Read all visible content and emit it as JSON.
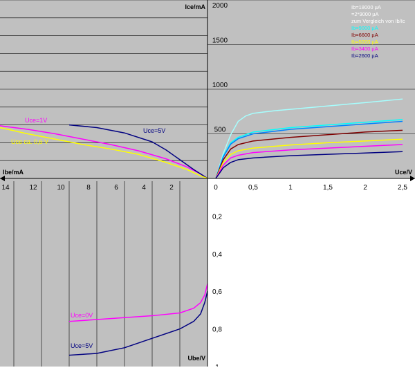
{
  "colors": {
    "background_gray": "#c0c0c0",
    "white": "#ffffff",
    "cyan": "#00ffff",
    "light_cyan": "#a6ffff",
    "dark_red": "#800000",
    "yellow": "#ffff00",
    "magenta": "#ff00ff",
    "navy": "#000080",
    "blue": "#0080ff",
    "black": "#000000"
  },
  "chart_data": [
    {
      "id": "output",
      "type": "line",
      "quadrant": "top-right",
      "xlabel": "Uce/V",
      "ylabel": "Ice/mA",
      "x_ticks": [
        "0",
        "0,5",
        "1",
        "1,5",
        "2",
        "2,5"
      ],
      "y_ticks": [
        "500",
        "1000",
        "1500",
        "2000"
      ],
      "xlim": [
        0,
        2.5
      ],
      "ylim": [
        0,
        2000
      ],
      "grid": "horizontal",
      "legend_position": "top-right",
      "legend": [
        {
          "text": "Ib=18000 µA",
          "color": "#ffffff"
        },
        {
          "text": "=2*9000 µA",
          "color": "#ffffff"
        },
        {
          "text": "zum Vergleich von Ib/Ic",
          "color": "#ffffff"
        },
        {
          "text": "Ib=9000 µA",
          "color": "#00ffff"
        },
        {
          "text": "Ib=6600 µA",
          "color": "#800000"
        },
        {
          "text": "Ib=5000 µA",
          "color": "#ffff00"
        },
        {
          "text": "Ib=3400 µA",
          "color": "#ff00ff"
        },
        {
          "text": "Ib=2600 µA",
          "color": "#000080"
        }
      ],
      "series": [
        {
          "name": "Ib=18000 µA",
          "color": "#a6ffff",
          "x": [
            0,
            0.1,
            0.2,
            0.3,
            0.4,
            0.5,
            0.8,
            1.2,
            1.6,
            2.0,
            2.5
          ],
          "y": [
            0,
            280,
            490,
            640,
            700,
            730,
            760,
            790,
            820,
            850,
            890
          ]
        },
        {
          "name": "Ib=9000 µA",
          "color": "#00ffff",
          "x": [
            0,
            0.1,
            0.2,
            0.3,
            0.5,
            1.0,
            1.5,
            2.0,
            2.5
          ],
          "y": [
            0,
            250,
            400,
            460,
            520,
            570,
            600,
            630,
            660
          ]
        },
        {
          "name": "Ib=9000 µA (2)",
          "color": "#0080ff",
          "x": [
            0,
            0.1,
            0.2,
            0.3,
            0.5,
            1.0,
            1.5,
            2.0,
            2.5
          ],
          "y": [
            0,
            240,
            385,
            445,
            500,
            550,
            580,
            610,
            640
          ]
        },
        {
          "name": "Ib=6600 µA",
          "color": "#800000",
          "x": [
            0,
            0.1,
            0.2,
            0.3,
            0.5,
            1.0,
            1.5,
            2.0,
            2.5
          ],
          "y": [
            0,
            210,
            330,
            380,
            420,
            460,
            490,
            520,
            540
          ]
        },
        {
          "name": "Ib=5000 µA",
          "color": "#ffff00",
          "x": [
            0,
            0.1,
            0.2,
            0.3,
            0.5,
            1.0,
            1.5,
            2.0,
            2.5
          ],
          "y": [
            0,
            180,
            270,
            310,
            340,
            375,
            400,
            420,
            440
          ]
        },
        {
          "name": "Ib=3400 µA",
          "color": "#ff00ff",
          "x": [
            0,
            0.1,
            0.2,
            0.3,
            0.5,
            1.0,
            1.5,
            2.0,
            2.5
          ],
          "y": [
            0,
            150,
            230,
            260,
            290,
            320,
            340,
            360,
            380
          ]
        },
        {
          "name": "Ib=2600 µA",
          "color": "#000080",
          "x": [
            0,
            0.1,
            0.2,
            0.3,
            0.5,
            1.0,
            1.5,
            2.0,
            2.5
          ],
          "y": [
            0,
            120,
            180,
            210,
            230,
            255,
            270,
            285,
            300
          ]
        }
      ]
    },
    {
      "id": "current-gain",
      "type": "line",
      "quadrant": "top-left",
      "xlabel": "Ibe/mA",
      "x_ticks": [
        "14",
        "12",
        "10",
        "8",
        "6",
        "4",
        "2"
      ],
      "xlim": [
        15,
        0
      ],
      "ylim": [
        0,
        2000
      ],
      "series": [
        {
          "name": "Uce=1V",
          "color": "#ff00ff",
          "x": [
            15,
            13,
            11,
            9,
            7,
            5,
            3,
            1.5,
            0.5,
            0
          ],
          "y": [
            590,
            550,
            500,
            440,
            380,
            310,
            220,
            130,
            50,
            0
          ]
        },
        {
          "name": "Uce=5V",
          "color": "#000080",
          "x": [
            10,
            8,
            6,
            4,
            3,
            2,
            1,
            0.5,
            0
          ],
          "y": [
            600,
            570,
            510,
            410,
            320,
            210,
            100,
            50,
            0
          ]
        },
        {
          "name": "Uce ca. 0,6 V",
          "color": "#ffff00",
          "x": [
            15,
            13,
            11,
            9,
            7,
            5,
            3,
            1.5,
            0.5,
            0
          ],
          "y": [
            570,
            500,
            440,
            380,
            330,
            270,
            180,
            100,
            30,
            0
          ]
        }
      ],
      "annotations": [
        "Uce=1V",
        "Uce=5V",
        "Uce ca. 0,6 V"
      ]
    },
    {
      "id": "input",
      "type": "line",
      "quadrant": "bottom-left",
      "ylabel": "Ube/V",
      "y_ticks": [
        "0,2",
        "0,4",
        "0,6",
        "0,8",
        "1"
      ],
      "xlim": [
        15,
        0
      ],
      "ylim": [
        0,
        1
      ],
      "series": [
        {
          "name": "Uce=0V",
          "color": "#ff00ff",
          "x": [
            10,
            8,
            6,
            4,
            2,
            1,
            0.5,
            0.2,
            0
          ],
          "y": [
            0.76,
            0.75,
            0.74,
            0.73,
            0.715,
            0.69,
            0.66,
            0.62,
            0.56
          ]
        },
        {
          "name": "Uce=5V",
          "color": "#000080",
          "x": [
            10,
            8,
            6,
            4,
            2,
            1,
            0.5,
            0.2,
            0
          ],
          "y": [
            0.94,
            0.93,
            0.9,
            0.85,
            0.8,
            0.76,
            0.72,
            0.66,
            0.6
          ]
        }
      ],
      "annotations": [
        "Uce=0V",
        "Uce=5V"
      ]
    }
  ]
}
